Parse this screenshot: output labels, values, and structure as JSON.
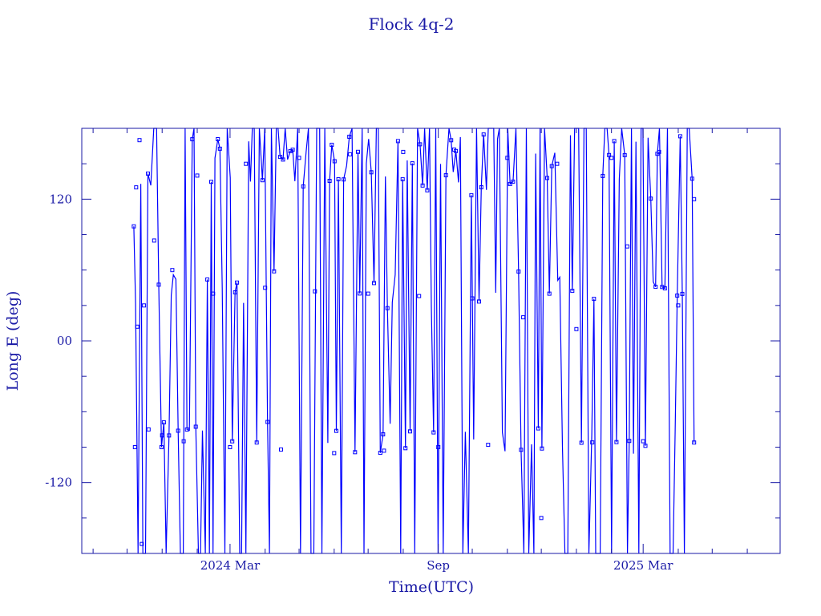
{
  "chart_data": {
    "type": "line",
    "title": "Flock 4q-2",
    "xlabel": "Time(UTC)",
    "ylabel": "Long E (deg)",
    "x_axis_type": "date",
    "xlim": [
      "2023-10-22",
      "2025-06-30"
    ],
    "ylim": [
      -180,
      180
    ],
    "x_ticks": [
      {
        "date": "2024-03-01",
        "label": "2024 Mar"
      },
      {
        "date": "2024-09-01",
        "label": "Sep"
      },
      {
        "date": "2025-03-01",
        "label": "2025 Mar"
      }
    ],
    "y_ticks": [
      {
        "value": 120,
        "label": "120"
      },
      {
        "value": 0,
        "label": "00"
      },
      {
        "value": -120,
        "label": "-120"
      }
    ],
    "grid": false,
    "color": "#1a1aa6",
    "series_color": "#0000ff",
    "series": [
      {
        "x_start": "2023-12-07",
        "x_end": "2025-04-15",
        "y_min": -180,
        "y_max": 180,
        "points": [
          [
            "2023-12-07",
            97
          ],
          [
            "2023-12-08",
            -90
          ],
          [
            "2023-12-09",
            130
          ],
          [
            "2023-12-10",
            12
          ],
          [
            "2023-12-12",
            170
          ],
          [
            "2023-12-14",
            -172
          ],
          [
            "2023-12-16",
            30
          ],
          [
            "2023-12-20",
            -75
          ],
          [
            "2023-12-25",
            85
          ],
          [
            "2024-01-01",
            -80
          ],
          [
            "2024-01-10",
            60
          ],
          [
            "2024-01-20",
            -85
          ],
          [
            "2024-02-01",
            140
          ],
          [
            "2024-02-15",
            40
          ],
          [
            "2024-03-01",
            -90
          ],
          [
            "2024-03-15",
            150
          ],
          [
            "2024-04-01",
            45
          ],
          [
            "2024-04-15",
            -92
          ],
          [
            "2024-05-01",
            155
          ],
          [
            "2024-05-15",
            42
          ],
          [
            "2024-06-01",
            -95
          ],
          [
            "2024-06-15",
            158
          ],
          [
            "2024-07-01",
            40
          ],
          [
            "2024-07-15",
            -93
          ],
          [
            "2024-08-01",
            160
          ],
          [
            "2024-08-15",
            38
          ],
          [
            "2024-09-01",
            -90
          ],
          [
            "2024-09-15",
            162
          ],
          [
            "2024-10-01",
            36
          ],
          [
            "2024-10-15",
            -88
          ],
          [
            "2024-11-01",
            155
          ],
          [
            "2024-11-15",
            20
          ],
          [
            "2024-12-01",
            -150
          ],
          [
            "2024-12-15",
            150
          ],
          [
            "2025-01-01",
            10
          ],
          [
            "2025-01-15",
            -86
          ],
          [
            "2025-02-01",
            155
          ],
          [
            "2025-02-15",
            80
          ],
          [
            "2025-03-01",
            -85
          ],
          [
            "2025-03-15",
            160
          ],
          [
            "2025-04-01",
            30
          ],
          [
            "2025-04-15",
            120
          ]
        ]
      }
    ]
  }
}
